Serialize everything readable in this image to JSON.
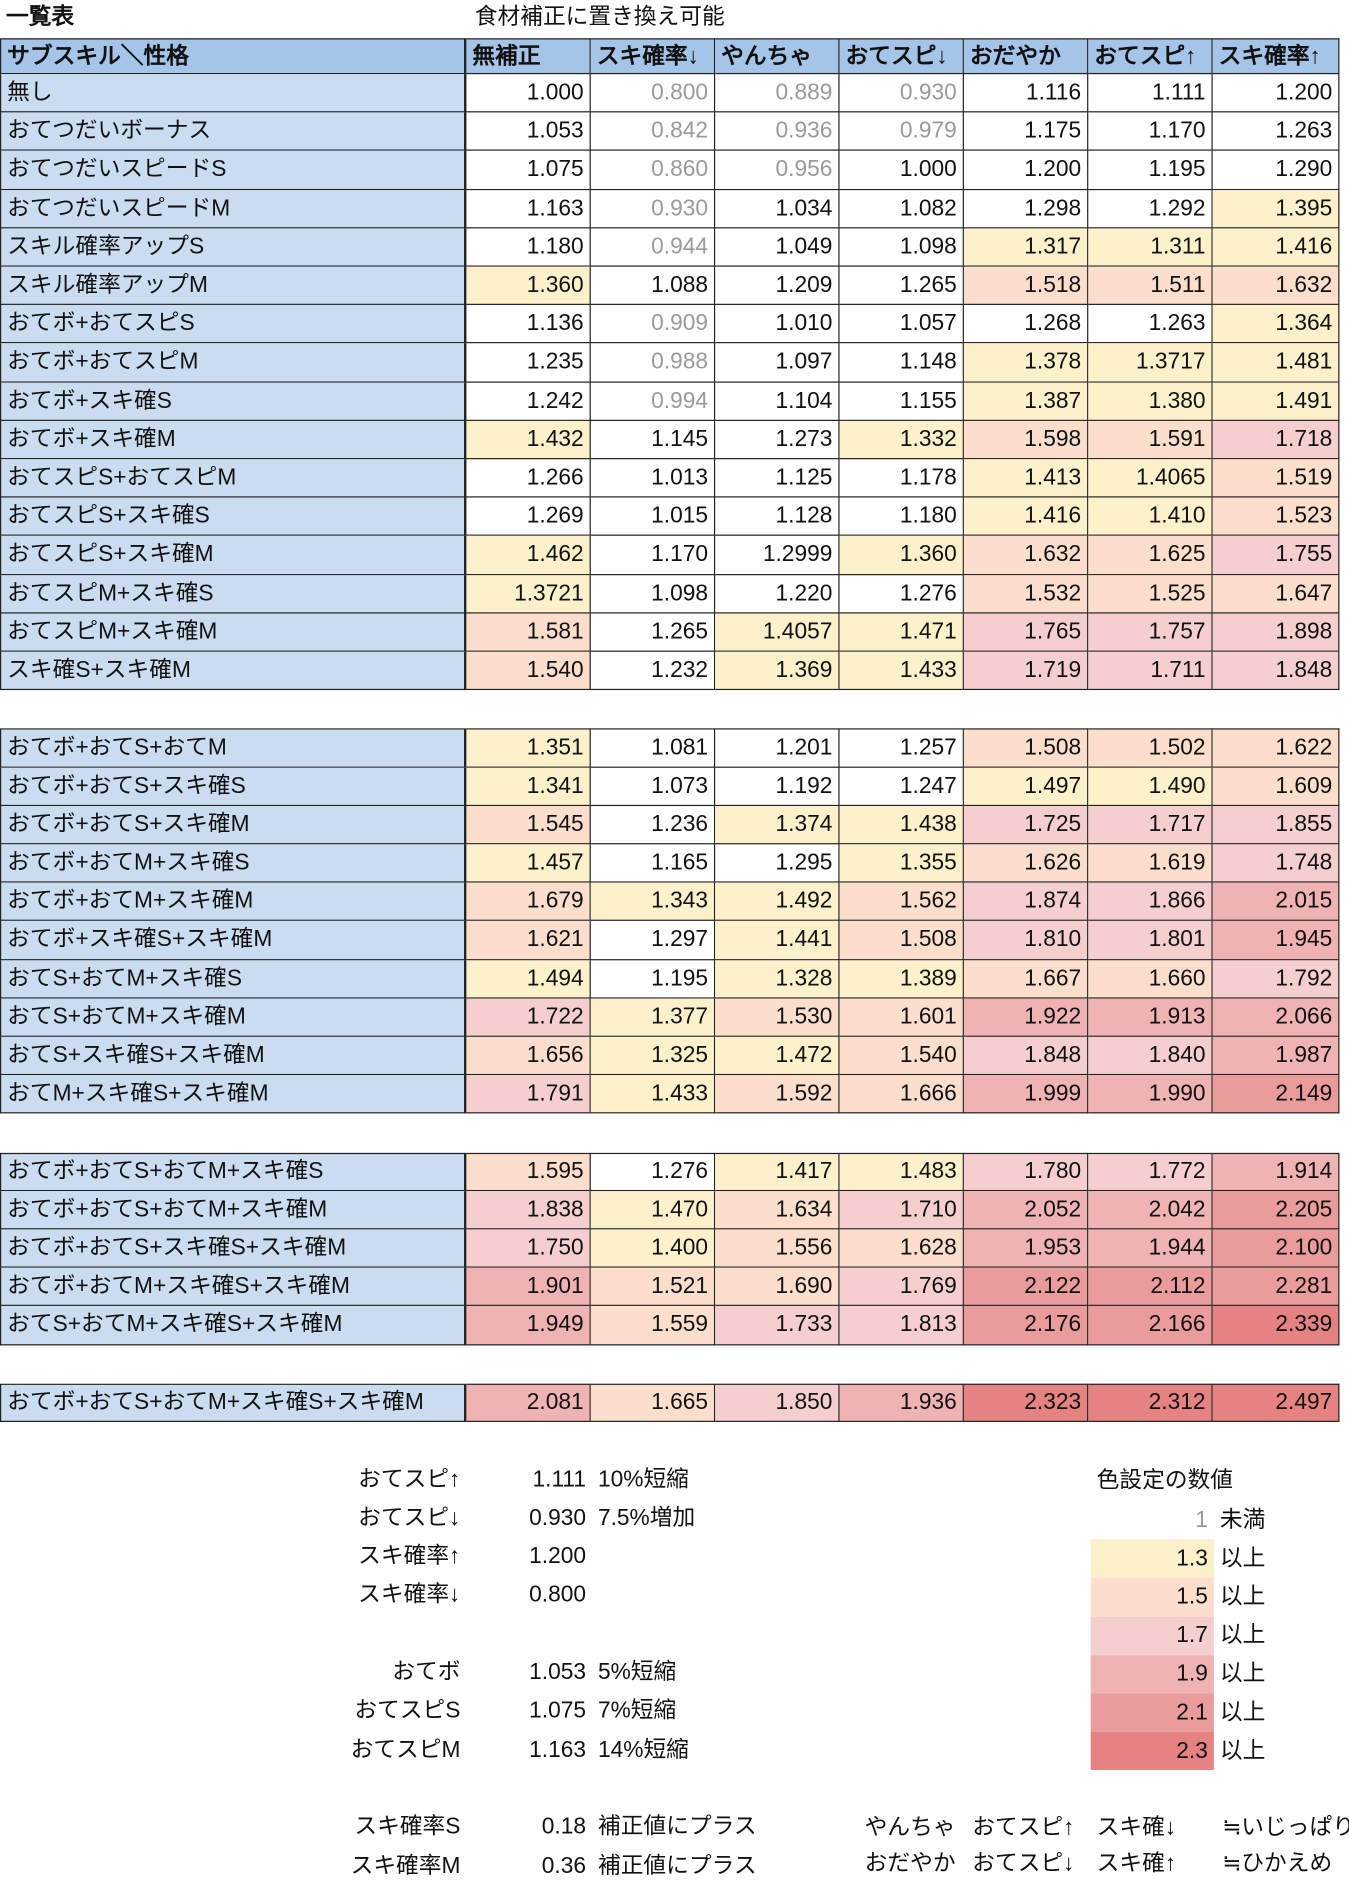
{
  "header": {
    "title": "一覧表",
    "note": "食材補正に置き換え可能"
  },
  "table": {
    "columns": [
      "サブスキル＼性格",
      "無補正",
      "スキ確率↓",
      "やんちゃ",
      "おてスピ↓",
      "おだやか",
      "おてスピ↑",
      "スキ確率↑"
    ],
    "groups": [
      [
        [
          "無し",
          "1.000",
          "0.800",
          "0.889",
          "0.930",
          "1.116",
          "1.111",
          "1.200"
        ],
        [
          "おてつだいボーナス",
          "1.053",
          "0.842",
          "0.936",
          "0.979",
          "1.175",
          "1.170",
          "1.263"
        ],
        [
          "おてつだいスピードS",
          "1.075",
          "0.860",
          "0.956",
          "1.000",
          "1.200",
          "1.195",
          "1.290"
        ],
        [
          "おてつだいスピードM",
          "1.163",
          "0.930",
          "1.034",
          "1.082",
          "1.298",
          "1.292",
          "1.395"
        ],
        [
          "スキル確率アップS",
          "1.180",
          "0.944",
          "1.049",
          "1.098",
          "1.317",
          "1.311",
          "1.416"
        ],
        [
          "スキル確率アップM",
          "1.360",
          "1.088",
          "1.209",
          "1.265",
          "1.518",
          "1.511",
          "1.632"
        ],
        [
          "おてボ+おてスピS",
          "1.136",
          "0.909",
          "1.010",
          "1.057",
          "1.268",
          "1.263",
          "1.364"
        ],
        [
          "おてボ+おてスピM",
          "1.235",
          "0.988",
          "1.097",
          "1.148",
          "1.378",
          "1.3717",
          "1.481"
        ],
        [
          "おてボ+スキ確S",
          "1.242",
          "0.994",
          "1.104",
          "1.155",
          "1.387",
          "1.380",
          "1.491"
        ],
        [
          "おてボ+スキ確M",
          "1.432",
          "1.145",
          "1.273",
          "1.332",
          "1.598",
          "1.591",
          "1.718"
        ],
        [
          "おてスピS+おてスピM",
          "1.266",
          "1.013",
          "1.125",
          "1.178",
          "1.413",
          "1.4065",
          "1.519"
        ],
        [
          "おてスピS+スキ確S",
          "1.269",
          "1.015",
          "1.128",
          "1.180",
          "1.416",
          "1.410",
          "1.523"
        ],
        [
          "おてスピS+スキ確M",
          "1.462",
          "1.170",
          "1.2999",
          "1.360",
          "1.632",
          "1.625",
          "1.755"
        ],
        [
          "おてスピM+スキ確S",
          "1.3721",
          "1.098",
          "1.220",
          "1.276",
          "1.532",
          "1.525",
          "1.647"
        ],
        [
          "おてスピM+スキ確M",
          "1.581",
          "1.265",
          "1.4057",
          "1.471",
          "1.765",
          "1.757",
          "1.898"
        ],
        [
          "スキ確S+スキ確M",
          "1.540",
          "1.232",
          "1.369",
          "1.433",
          "1.719",
          "1.711",
          "1.848"
        ]
      ],
      [
        [
          "おてボ+おてS+おてM",
          "1.351",
          "1.081",
          "1.201",
          "1.257",
          "1.508",
          "1.502",
          "1.622"
        ],
        [
          "おてボ+おてS+スキ確S",
          "1.341",
          "1.073",
          "1.192",
          "1.247",
          "1.497",
          "1.490",
          "1.609"
        ],
        [
          "おてボ+おてS+スキ確M",
          "1.545",
          "1.236",
          "1.374",
          "1.438",
          "1.725",
          "1.717",
          "1.855"
        ],
        [
          "おてボ+おてM+スキ確S",
          "1.457",
          "1.165",
          "1.295",
          "1.355",
          "1.626",
          "1.619",
          "1.748"
        ],
        [
          "おてボ+おてM+スキ確M",
          "1.679",
          "1.343",
          "1.492",
          "1.562",
          "1.874",
          "1.866",
          "2.015"
        ],
        [
          "おてボ+スキ確S+スキ確M",
          "1.621",
          "1.297",
          "1.441",
          "1.508",
          "1.810",
          "1.801",
          "1.945"
        ],
        [
          "おてS+おてM+スキ確S",
          "1.494",
          "1.195",
          "1.328",
          "1.389",
          "1.667",
          "1.660",
          "1.792"
        ],
        [
          "おてS+おてM+スキ確M",
          "1.722",
          "1.377",
          "1.530",
          "1.601",
          "1.922",
          "1.913",
          "2.066"
        ],
        [
          "おてS+スキ確S+スキ確M",
          "1.656",
          "1.325",
          "1.472",
          "1.540",
          "1.848",
          "1.840",
          "1.987"
        ],
        [
          "おてM+スキ確S+スキ確M",
          "1.791",
          "1.433",
          "1.592",
          "1.666",
          "1.999",
          "1.990",
          "2.149"
        ]
      ],
      [
        [
          "おてボ+おてS+おてM+スキ確S",
          "1.595",
          "1.276",
          "1.417",
          "1.483",
          "1.780",
          "1.772",
          "1.914"
        ],
        [
          "おてボ+おてS+おてM+スキ確M",
          "1.838",
          "1.470",
          "1.634",
          "1.710",
          "2.052",
          "2.042",
          "2.205"
        ],
        [
          "おてボ+おてS+スキ確S+スキ確M",
          "1.750",
          "1.400",
          "1.556",
          "1.628",
          "1.953",
          "1.944",
          "2.100"
        ],
        [
          "おてボ+おてM+スキ確S+スキ確M",
          "1.901",
          "1.521",
          "1.690",
          "1.769",
          "2.122",
          "2.112",
          "2.281"
        ],
        [
          "おてS+おてM+スキ確S+スキ確M",
          "1.949",
          "1.559",
          "1.733",
          "1.813",
          "2.176",
          "2.166",
          "2.339"
        ]
      ],
      [
        [
          "おてボ+おてS+おてM+スキ確S+スキ確M",
          "2.081",
          "1.665",
          "1.850",
          "1.936",
          "2.323",
          "2.312",
          "2.497"
        ]
      ]
    ]
  },
  "notes": [
    [
      [
        "おてスピ↑",
        "1.111",
        "10%短縮"
      ],
      [
        "おてスピ↓",
        "0.930",
        "7.5%増加"
      ],
      [
        "スキ確率↑",
        "1.200"
      ],
      [
        "スキ確率↓",
        "0.800"
      ]
    ],
    [
      [
        "おてボ",
        "1.053",
        "5%短縮"
      ],
      [
        "おてスピS",
        "1.075",
        "7%短縮"
      ],
      [
        "おてスピM",
        "1.163",
        "14%短縮"
      ]
    ],
    [
      [
        "スキ確率S",
        "0.18",
        "補正値にプラス"
      ],
      [
        "スキ確率M",
        "0.36",
        "補正値にプラス"
      ]
    ]
  ],
  "color_settings": {
    "title": "色設定の数値",
    "levels": [
      {
        "value": 1,
        "label": "未満",
        "text_color": "#9a9a9a"
      },
      {
        "value": 1.3,
        "label": "以上",
        "fill": "#fdf1cc"
      },
      {
        "value": 1.5,
        "label": "以上",
        "fill": "#fbdfcc"
      },
      {
        "value": 1.7,
        "label": "以上",
        "fill": "#f5cfcf"
      },
      {
        "value": 1.9,
        "label": "以上",
        "fill": "#efb3b3"
      },
      {
        "value": 2.1,
        "label": "以上",
        "fill": "#ea9c9c"
      },
      {
        "value": 2.3,
        "label": "以上",
        "fill": "#e58383"
      }
    ]
  },
  "nature_pairs": [
    [
      "やんちゃ",
      "おてスピ↑",
      "スキ確↓",
      "≒いじっぱり"
    ],
    [
      "おだやか",
      "おてスピ↓",
      "スキ確↑",
      "≒ひかえめ"
    ]
  ]
}
